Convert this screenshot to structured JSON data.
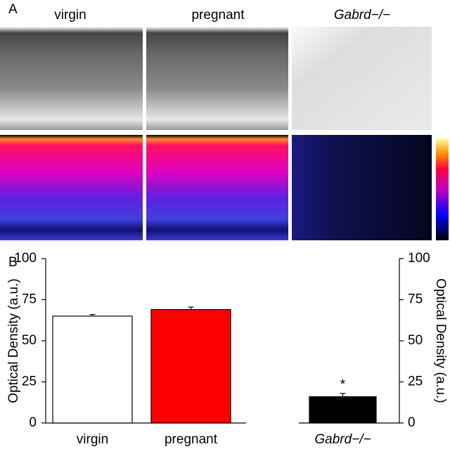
{
  "panel_labels": [
    "A",
    "B"
  ],
  "chart_data": {
    "type": "bar",
    "categories": [
      "virgin",
      "pregnant",
      "Gabrd−/−"
    ],
    "values": [
      65,
      69,
      16
    ],
    "errors": [
      1,
      1.5,
      2
    ],
    "colors": [
      "#ffffff",
      "#ff0000",
      "#000000"
    ],
    "y_axis_label": "Optical Density (a.u.)",
    "ylim": [
      0,
      100
    ],
    "yticks": [
      0,
      25,
      50,
      75,
      100
    ],
    "annotation": {
      "category": 2,
      "text": "*"
    }
  }
}
